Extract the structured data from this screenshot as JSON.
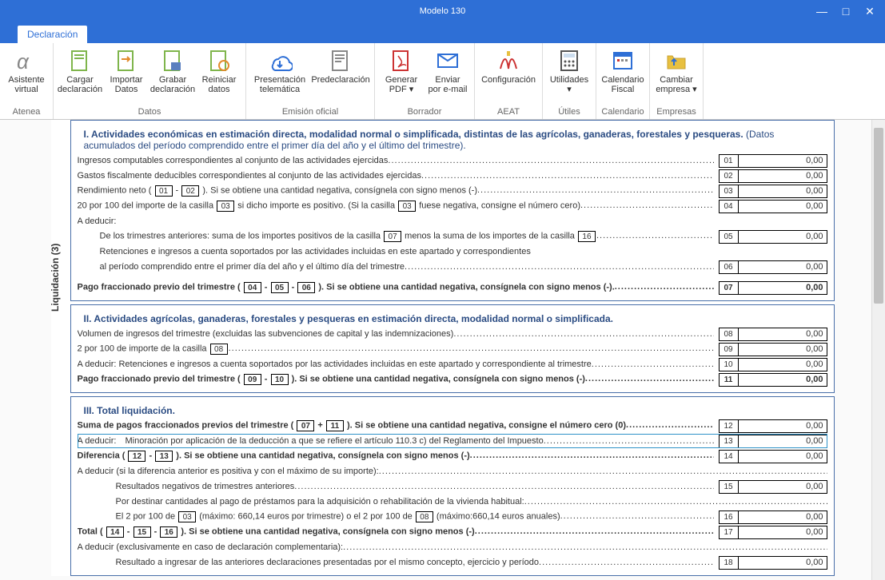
{
  "window": {
    "title": "Modelo 130"
  },
  "tab": {
    "label": "Declaración"
  },
  "ribbon": {
    "groups": [
      {
        "label": "Atenea",
        "items": [
          {
            "line1": "Asistente",
            "line2": "virtual",
            "icon": "alpha"
          }
        ]
      },
      {
        "label": "Datos",
        "items": [
          {
            "line1": "Cargar",
            "line2": "declaración",
            "icon": "doc-green"
          },
          {
            "line1": "Importar",
            "line2": "Datos",
            "icon": "doc-arrow"
          },
          {
            "line1": "Grabar",
            "line2": "declaración",
            "icon": "doc-save"
          },
          {
            "line1": "Reiniciar",
            "line2": "datos",
            "icon": "doc-reset"
          }
        ]
      },
      {
        "label": "Emisión oficial",
        "items": [
          {
            "line1": "Presentación",
            "line2": "telemática",
            "icon": "cloud",
            "wide": true
          },
          {
            "line1": "Predeclaración",
            "line2": "",
            "icon": "doc-pre",
            "wide": true
          }
        ]
      },
      {
        "label": "Borrador",
        "items": [
          {
            "line1": "Generar",
            "line2": "PDF ▾",
            "icon": "pdf"
          },
          {
            "line1": "Enviar",
            "line2": "por e-mail",
            "icon": "mail"
          }
        ]
      },
      {
        "label": "AEAT",
        "items": [
          {
            "line1": "Configuración",
            "line2": "",
            "icon": "aeat",
            "wide": true
          }
        ]
      },
      {
        "label": "Útiles",
        "items": [
          {
            "line1": "Utilidades",
            "line2": "▾",
            "icon": "calc"
          }
        ]
      },
      {
        "label": "Calendario",
        "items": [
          {
            "line1": "Calendario",
            "line2": "Fiscal",
            "icon": "cal"
          }
        ]
      },
      {
        "label": "Empresas",
        "items": [
          {
            "line1": "Cambiar",
            "line2": "empresa ▾",
            "icon": "folder"
          }
        ]
      }
    ]
  },
  "form": {
    "sidebar": "Liquidación (3)",
    "section1": {
      "title": "I.  Actividades económicas en estimación directa, modalidad normal o simplificada, distintas de las agrícolas, ganaderas, forestales y pesqueras.",
      "subtitle": " (Datos acumulados del período comprendido entre el primer día del año y el último del trimestre).",
      "rows": [
        {
          "text": "Ingresos computables correspondientes al conjunto de las actividades ejercidas",
          "id": "01",
          "val": "0,00"
        },
        {
          "text": "Gastos fiscalmente deducibles correspondientes al conjunto de las actividades ejercidas",
          "id": "02",
          "val": "0,00"
        },
        {
          "text": "Rendimiento neto ( [01] - [02] ). Si se obtiene una cantidad negativa, consígnela con signo menos (-)",
          "id": "03",
          "val": "0,00",
          "casillas": [
            "01",
            "02"
          ]
        },
        {
          "text": "20 por 100 del importe de la casilla [03] si dicho importe es positivo. (Si  la casilla [03] fuese negativa, consigne el número cero)",
          "id": "04",
          "val": "0,00",
          "casillas": [
            "03",
            "03"
          ]
        }
      ],
      "adeducir_label": "A deducir:",
      "sub1": {
        "text": "De los trimestres anteriores: suma de los importes positivos de la casilla [07] menos la suma de los importes de la  casilla [16]",
        "id": "05",
        "val": "0,00",
        "casillas": [
          "07",
          "16"
        ]
      },
      "sub2a": "Retenciones e ingresos a cuenta soportados por las actividades incluidas en este apartado y correspondientes",
      "sub2b": {
        "text": "al período comprendido entre el primer día del año y el último día del trimestre",
        "id": "06",
        "val": "0,00"
      },
      "pago": {
        "text": "Pago fraccionado previo del trimestre  ( [04] - [05] - [06] ). Si se obtiene una cantidad negativa, consígnela con signo menos (-).",
        "id": "07",
        "val": "0,00",
        "casillas": [
          "04",
          "05",
          "06"
        ],
        "bold": true
      }
    },
    "section2": {
      "title": "II.  Actividades agrícolas, ganaderas, forestales y pesqueras en estimación directa, modalidad normal o simplificada.",
      "rows": [
        {
          "text": "Volumen de ingresos del trimestre (excluidas las subvenciones de capital y las indemnizaciones)",
          "id": "08",
          "val": "0,00"
        },
        {
          "text": "2 por 100 de importe de la casilla [08]",
          "id": "09",
          "val": "0,00",
          "casillas": [
            "08"
          ]
        },
        {
          "text": "A deducir:  Retenciones e ingresos a cuenta soportados por las actividades incluidas en este apartado y correspondiente al trimestre",
          "id": "10",
          "val": "0,00"
        },
        {
          "text": "Pago fraccionado previo del trimestre  ( [09] - [10] ). Si se obtiene una cantidad negativa, consígnela con signo menos (-)",
          "id": "11",
          "val": "0,00",
          "casillas": [
            "09",
            "10"
          ],
          "bold": true
        }
      ]
    },
    "section3": {
      "title": "III.  Total liquidación.",
      "rows": [
        {
          "text": "Suma de pagos fraccionados previos del trimestre  ( [07] + [11] ). Si se obtiene una cantidad negativa, consigne el número cero (0)",
          "id": "12",
          "val": "0,00",
          "casillas": [
            "07",
            "11"
          ],
          "boldtxt": true
        },
        {
          "prefix": "A deducir:",
          "text": "Minoración por aplicación de la deducción a que se refiere el artículo 110.3 c) del Reglamento del Impuesto",
          "id": "13",
          "val": "0,00",
          "highlight": true
        },
        {
          "text": "Diferencia ( [12] - [13] ). Si se obtiene una cantidad negativa, consígnela con signo menos (-)",
          "id": "14",
          "val": "0,00",
          "casillas": [
            "12",
            "13"
          ],
          "boldtxt": true
        },
        {
          "text": "A deducir (si la diferencia anterior es positiva y con el máximo de su importe):",
          "noval": true
        },
        {
          "text": "Resultados negativos de trimestres anteriores",
          "id": "15",
          "val": "0,00",
          "indent": true
        },
        {
          "text": "Por destinar cantidades al pago de préstamos para la adquisición o rehabilitación de la vivienda habitual:",
          "noval": true,
          "indent": true
        },
        {
          "text": "El 2 por 100 de [03]  (máximo: 660,14 euros por trimestre) o el 2 por 100 de [08]   (máximo:660,14 euros anuales)",
          "id": "16",
          "val": "0,00",
          "casillas": [
            "03",
            "08"
          ],
          "indent": true
        },
        {
          "text": "Total ( [14] - [15] - [16] ). Si se obtiene una cantidad negativa, consígnela con signo menos (-)",
          "id": "17",
          "val": "0,00",
          "casillas": [
            "14",
            "15",
            "16"
          ],
          "boldtxt": true
        },
        {
          "text": "A deducir (exclusivamente en caso de declaración complementaria):",
          "noval": true
        },
        {
          "text": "Resultado a ingresar de las anteriores declaraciones presentadas por el mismo concepto, ejercicio y período",
          "id": "18",
          "val": "0,00",
          "indent": true
        }
      ]
    }
  }
}
